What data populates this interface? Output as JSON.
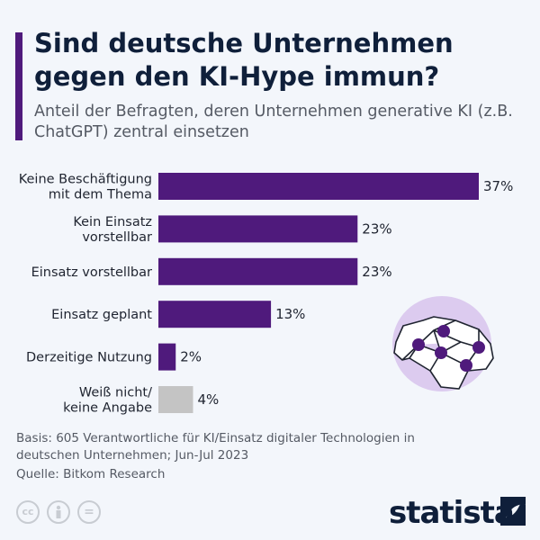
{
  "header": {
    "title": "Sind deutsche Unternehmen gegen den KI-Hype immun?",
    "subtitle": "Anteil der Befragten, deren Unternehmen generative KI (z.B. ChatGPT) zentral einsetzen"
  },
  "chart_data": {
    "type": "bar",
    "orientation": "horizontal",
    "categories": [
      [
        "Keine Beschäftigung",
        "mit dem Thema"
      ],
      [
        "Kein Einsatz",
        "vorstellbar"
      ],
      [
        "Einsatz vorstellbar"
      ],
      [
        "Einsatz geplant"
      ],
      [
        "Derzeitige Nutzung"
      ],
      [
        "Weiß nicht/",
        "keine Angabe"
      ]
    ],
    "values": [
      37,
      23,
      23,
      13,
      2,
      4
    ],
    "value_labels": [
      "37%",
      "23%",
      "23%",
      "13%",
      "2%",
      "4%"
    ],
    "colors": [
      "#4f1a7c",
      "#4f1a7c",
      "#4f1a7c",
      "#4f1a7c",
      "#4f1a7c",
      "#c4c4c4"
    ],
    "grid": false,
    "xlim": [
      0,
      37
    ]
  },
  "footer": {
    "basis": "Basis: 605 Verantwortliche für KI/Einsatz digitaler Technologien in deutschen Unternehmen; Jun-Jul 2023",
    "source": "Quelle: Bitkom Research",
    "license_icons": [
      "cc-icon",
      "by-icon",
      "nd-icon"
    ],
    "cc_text": "cc",
    "nd_text": "=",
    "brand": "statista"
  }
}
